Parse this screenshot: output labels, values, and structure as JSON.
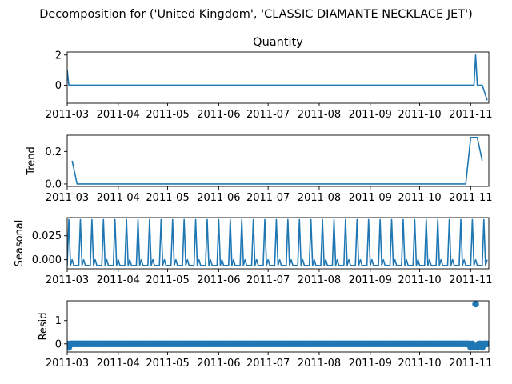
{
  "figure": {
    "suptitle": "Decomposition for ('United Kingdom', 'CLASSIC DIAMANTE NECKLACE JET')",
    "line_color": "#1f77b4"
  },
  "chart_data": [
    {
      "type": "line",
      "title": "Quantity",
      "ylabel": "",
      "xlim": [
        "2011-03-01",
        "2011-11-12"
      ],
      "ylim": [
        -1.2,
        2.2
      ],
      "x_ticks": [
        "2011-03",
        "2011-04",
        "2011-05",
        "2011-06",
        "2011-07",
        "2011-08",
        "2011-09",
        "2011-10",
        "2011-11"
      ],
      "y_ticks": [
        0,
        2
      ],
      "series": [
        {
          "x": [
            "2011-03-01",
            "2011-03-02",
            "2011-11-01",
            "2011-11-03",
            "2011-11-04",
            "2011-11-05",
            "2011-11-08",
            "2011-11-11"
          ],
          "values": [
            1,
            0,
            0,
            0,
            2,
            0,
            0,
            -1
          ]
        }
      ]
    },
    {
      "type": "line",
      "title": "",
      "ylabel": "Trend",
      "xlim": [
        "2011-03-01",
        "2011-11-12"
      ],
      "ylim": [
        -0.015,
        0.3
      ],
      "x_ticks": [
        "2011-03",
        "2011-04",
        "2011-05",
        "2011-06",
        "2011-07",
        "2011-08",
        "2011-09",
        "2011-10",
        "2011-11"
      ],
      "y_ticks": [
        0.0,
        0.2
      ],
      "y_tick_format": 1,
      "series": [
        {
          "x": [
            "2011-03-04",
            "2011-03-07",
            "2011-10-29",
            "2011-11-01",
            "2011-11-05",
            "2011-11-08"
          ],
          "values": [
            0.143,
            0,
            0,
            0.286,
            0.286,
            0.143
          ]
        }
      ]
    },
    {
      "type": "line",
      "title": "",
      "ylabel": "Seasonal",
      "xlim": [
        "2011-03-01",
        "2011-11-12"
      ],
      "ylim": [
        -0.0095,
        0.044
      ],
      "x_ticks": [
        "2011-03",
        "2011-04",
        "2011-05",
        "2011-06",
        "2011-07",
        "2011-08",
        "2011-09",
        "2011-10",
        "2011-11"
      ],
      "y_ticks": [
        0.0,
        0.025
      ],
      "y_tick_format": 3,
      "seasonal_pattern": {
        "start": "2011-03-01",
        "period_days": 7,
        "weekly_values": [
          -0.006,
          0.042,
          -0.006,
          0.0,
          -0.006,
          -0.006,
          -0.006
        ],
        "end": "2011-11-11"
      }
    },
    {
      "type": "scatter",
      "title": "",
      "ylabel": "Resid",
      "xlim": [
        "2011-03-01",
        "2011-11-12"
      ],
      "ylim": [
        -0.35,
        1.85
      ],
      "x_ticks": [
        "2011-03",
        "2011-04",
        "2011-05",
        "2011-06",
        "2011-07",
        "2011-08",
        "2011-09",
        "2011-10",
        "2011-11"
      ],
      "y_ticks": [
        0,
        1
      ],
      "baseline": 0,
      "baseline_range": [
        "2011-03-01",
        "2011-11-11"
      ],
      "special_points": [
        {
          "x": "2011-03-02",
          "value": -0.15
        },
        {
          "x": "2011-11-01",
          "value": -0.15
        },
        {
          "x": "2011-11-03",
          "value": -0.15
        },
        {
          "x": "2011-11-04",
          "value": 1.71
        },
        {
          "x": "2011-11-05",
          "value": -0.15
        },
        {
          "x": "2011-11-08",
          "value": -0.15
        }
      ]
    }
  ]
}
